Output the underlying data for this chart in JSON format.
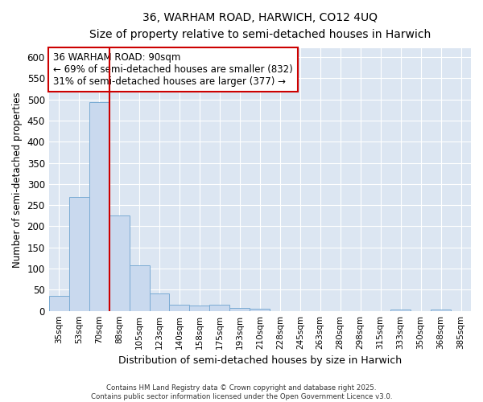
{
  "title_line1": "36, WARHAM ROAD, HARWICH, CO12 4UQ",
  "title_line2": "Size of property relative to semi-detached houses in Harwich",
  "xlabel": "Distribution of semi-detached houses by size in Harwich",
  "ylabel": "Number of semi-detached properties",
  "categories": [
    "35sqm",
    "53sqm",
    "70sqm",
    "88sqm",
    "105sqm",
    "123sqm",
    "140sqm",
    "158sqm",
    "175sqm",
    "193sqm",
    "210sqm",
    "228sqm",
    "245sqm",
    "263sqm",
    "280sqm",
    "298sqm",
    "315sqm",
    "333sqm",
    "350sqm",
    "368sqm",
    "385sqm"
  ],
  "values": [
    35,
    270,
    493,
    225,
    108,
    42,
    14,
    12,
    15,
    7,
    5,
    0,
    0,
    0,
    0,
    0,
    0,
    4,
    0,
    4,
    0
  ],
  "bar_color": "#c9d9ee",
  "bar_edge_color": "#7aabd4",
  "plot_bg_color": "#dce6f2",
  "fig_bg_color": "#ffffff",
  "grid_color": "#ffffff",
  "red_line_color": "#cc0000",
  "annotation_text": "36 WARHAM ROAD: 90sqm\n← 69% of semi-detached houses are smaller (832)\n31% of semi-detached houses are larger (377) →",
  "annotation_box_color": "#ffffff",
  "annotation_edge_color": "#cc0000",
  "ylim": [
    0,
    620
  ],
  "yticks": [
    0,
    50,
    100,
    150,
    200,
    250,
    300,
    350,
    400,
    450,
    500,
    550,
    600
  ],
  "red_line_index": 3,
  "footnote": "Contains HM Land Registry data © Crown copyright and database right 2025.\nContains public sector information licensed under the Open Government Licence v3.0."
}
